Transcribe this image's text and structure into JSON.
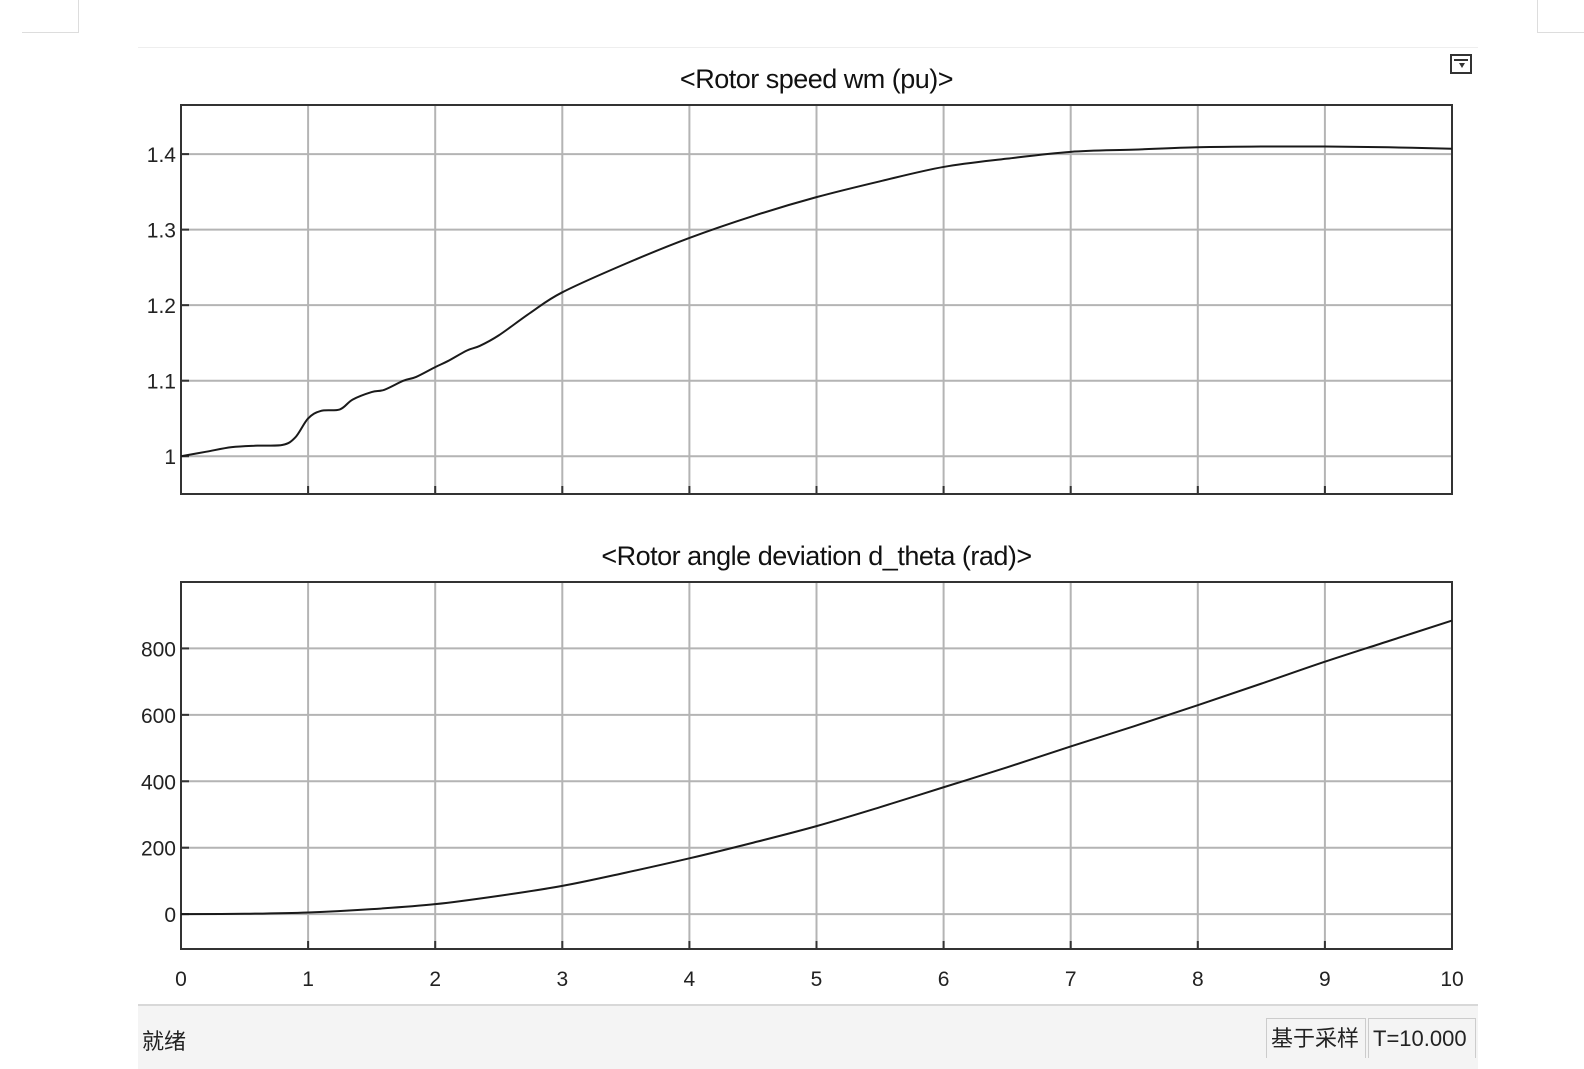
{
  "status": {
    "ready": "就绪",
    "mode": "基于采样",
    "time": "T=10.000"
  },
  "icons": {
    "restore": "restore-axes-icon"
  },
  "colors": {
    "line": "#1a1a1a",
    "grid": "#b4b4b4",
    "frame": "#333333"
  },
  "chart_data": [
    {
      "type": "line",
      "title": "<Rotor speed  wm  (pu)>",
      "xlim": [
        0,
        10
      ],
      "ylim": [
        0.95,
        1.465
      ],
      "grid": true,
      "xticks": [
        "0",
        "1",
        "2",
        "3",
        "4",
        "5",
        "6",
        "7",
        "8",
        "9",
        "10"
      ],
      "xticklabels_shown": false,
      "yticks": [
        1,
        1.1,
        1.2,
        1.3,
        1.4
      ],
      "yticklabels": [
        "1",
        "1.1",
        "1.2",
        "1.3",
        "1.4"
      ],
      "x": [
        0,
        0.2,
        0.4,
        0.6,
        0.8,
        0.9,
        1.0,
        1.1,
        1.25,
        1.35,
        1.5,
        1.6,
        1.75,
        1.85,
        2.0,
        2.1,
        2.25,
        2.35,
        2.5,
        2.75,
        3.0,
        3.5,
        4.0,
        4.5,
        5.0,
        5.5,
        6.0,
        6.5,
        7.0,
        7.5,
        8.0,
        8.5,
        9.0,
        9.5,
        10.0
      ],
      "y": [
        1.0,
        1.006,
        1.012,
        1.014,
        1.015,
        1.025,
        1.05,
        1.06,
        1.062,
        1.075,
        1.085,
        1.088,
        1.1,
        1.105,
        1.118,
        1.126,
        1.14,
        1.146,
        1.16,
        1.19,
        1.217,
        1.255,
        1.289,
        1.318,
        1.343,
        1.364,
        1.383,
        1.394,
        1.403,
        1.406,
        1.409,
        1.41,
        1.41,
        1.409,
        1.407
      ]
    },
    {
      "type": "line",
      "title": "<Rotor angle deviation  d_theta (rad)>",
      "xlim": [
        0,
        10
      ],
      "ylim": [
        -105,
        1000
      ],
      "grid": true,
      "xticks": [
        "0",
        "1",
        "2",
        "3",
        "4",
        "5",
        "6",
        "7",
        "8",
        "9",
        "10"
      ],
      "yticks": [
        0,
        200,
        400,
        600,
        800
      ],
      "yticklabels": [
        "0",
        "200",
        "400",
        "600",
        "800"
      ],
      "x": [
        0,
        0.5,
        1,
        1.5,
        2,
        2.5,
        3,
        3.5,
        4,
        4.5,
        5,
        5.5,
        6,
        6.5,
        7,
        7.5,
        8,
        8.5,
        9,
        9.5,
        10
      ],
      "y": [
        0,
        1,
        5,
        15,
        30,
        55,
        85,
        125,
        168,
        215,
        265,
        322,
        382,
        442,
        505,
        566,
        629,
        694,
        760,
        822,
        884
      ]
    }
  ]
}
